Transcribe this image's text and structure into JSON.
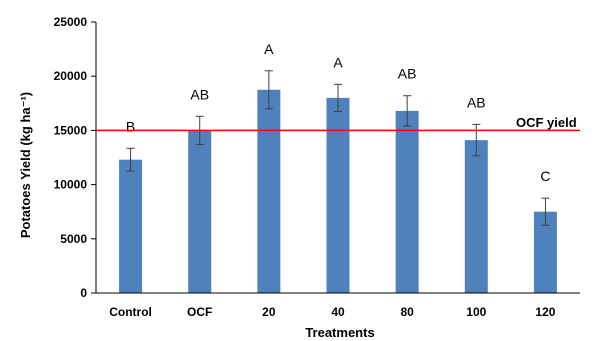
{
  "chart_data": {
    "type": "bar",
    "title": "",
    "xlabel": "Treatments",
    "ylabel": "Potatoes Yield (kg ha⁻¹)",
    "categories": [
      "Control",
      "OCF",
      "20",
      "40",
      "80",
      "100",
      "120"
    ],
    "values": [
      12300,
      15000,
      18750,
      18000,
      16800,
      14100,
      7500
    ],
    "error": [
      1050,
      1300,
      1750,
      1250,
      1400,
      1450,
      1250
    ],
    "significance_letters": [
      "B",
      "AB",
      "A",
      "A",
      "AB",
      "AB",
      "C"
    ],
    "ylim": [
      0,
      25000
    ],
    "yticks": [
      0,
      5000,
      10000,
      15000,
      20000,
      25000
    ],
    "ytick_labels": [
      "0",
      "5000",
      "10000",
      "15000",
      "20000",
      "25000"
    ],
    "grid": false,
    "bar_color": "#4f81bd",
    "reference_line": {
      "value": 15000,
      "label": "OCF yield",
      "color": "#ff0000"
    }
  }
}
